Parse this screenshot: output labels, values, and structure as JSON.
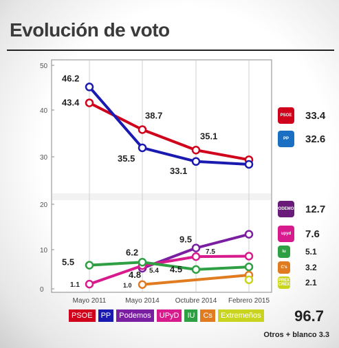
{
  "title": "Evolución de voto",
  "chart_data": {
    "type": "line",
    "categories": [
      "Mayo 2011",
      "Mayo 2014",
      "Octubre 2014",
      "Febrero 2015"
    ],
    "yticks": [
      0,
      10,
      20,
      30,
      40,
      50
    ],
    "ylim": [
      0,
      50
    ],
    "series": [
      {
        "name": "PSOE",
        "color": "#d0021b",
        "values": [
          43.4,
          38.7,
          35.1,
          33.4
        ],
        "labels": [
          "43.4",
          "38.7",
          "35.1",
          ""
        ]
      },
      {
        "name": "PP",
        "color": "#1a1ab0",
        "values": [
          46.2,
          35.5,
          33.1,
          32.6
        ],
        "labels": [
          "46.2",
          "35.5",
          "33.1",
          ""
        ]
      },
      {
        "name": "Podemos",
        "color": "#7b1fa2",
        "values": [
          null,
          4.8,
          9.5,
          12.7
        ],
        "labels": [
          "",
          "4.8",
          "9.5",
          ""
        ]
      },
      {
        "name": "UPyD",
        "color": "#d81b8c",
        "values": [
          1.1,
          5.4,
          7.5,
          7.6
        ],
        "labels": [
          "1.1",
          "5.4",
          "7.5",
          ""
        ]
      },
      {
        "name": "IU",
        "color": "#2ea043",
        "values": [
          5.5,
          6.2,
          4.5,
          5.1
        ],
        "labels": [
          "5.5",
          "6.2",
          "4.5",
          ""
        ]
      },
      {
        "name": "Cs",
        "color": "#e07b20",
        "values": [
          null,
          1.0,
          null,
          3.2
        ],
        "labels": [
          "",
          "1.0",
          "",
          ""
        ]
      },
      {
        "name": "Extremeños",
        "color": "#c8d41e",
        "values": [
          null,
          null,
          null,
          2.1
        ],
        "labels": [
          "",
          "",
          "",
          ""
        ]
      }
    ],
    "final_values": [
      "33.4",
      "32.6",
      "12.7",
      "7.6",
      "5.1",
      "3.2",
      "2.1"
    ]
  },
  "logos": [
    {
      "name": "psoe-logo",
      "color": "#d0021b",
      "text": "PSOE"
    },
    {
      "name": "pp-logo",
      "color": "#1a6fc2",
      "text": "PP"
    },
    {
      "name": "podemos-logo",
      "color": "#6a1b7a",
      "text": "PODEMOS"
    },
    {
      "name": "upyd-logo",
      "color": "#d81b8c",
      "text": "upyd"
    },
    {
      "name": "iu-logo",
      "color": "#2ea043",
      "text": "iu"
    },
    {
      "name": "cs-logo",
      "color": "#e07b20",
      "text": "C's"
    },
    {
      "name": "extremenos-logo",
      "color": "#c8d41e",
      "text": "PREX CREX"
    }
  ],
  "total": "96.7",
  "others": "Otros + blanco 3.3"
}
